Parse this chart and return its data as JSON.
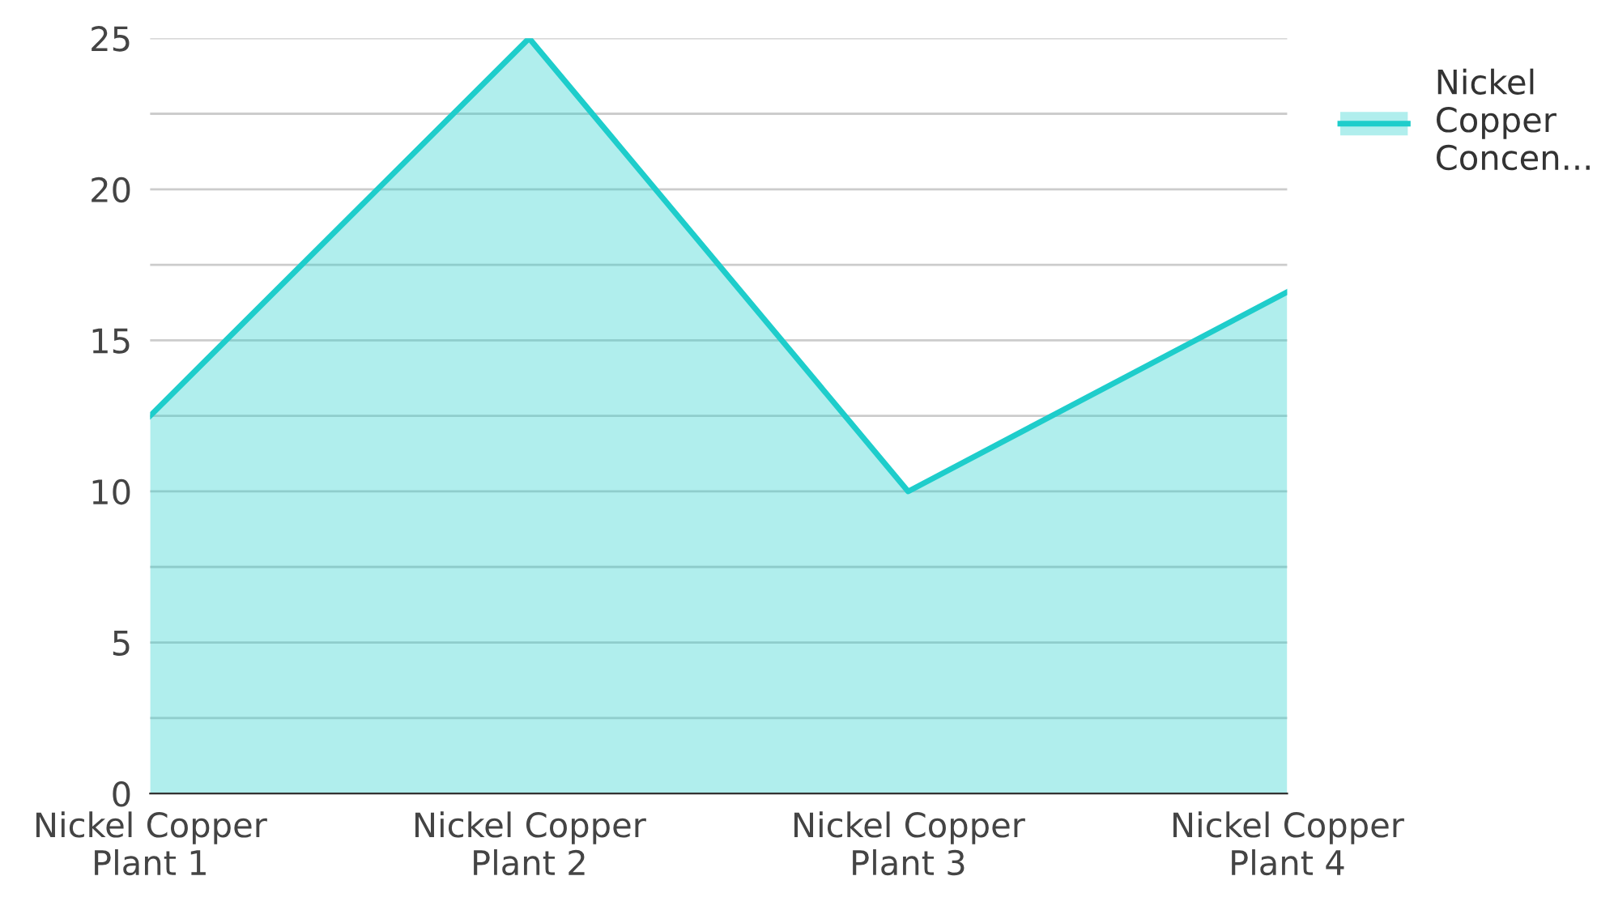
{
  "chart_data": {
    "type": "area",
    "categories": [
      "Nickel Copper\nPlant 1",
      "Nickel Copper\nPlant 2",
      "Nickel Copper\nPlant 3",
      "Nickel Copper\nPlant 4"
    ],
    "series": [
      {
        "name": "Nickel\nCopper\nConcen...",
        "color": "#1ecdcb",
        "values": [
          12.5,
          25,
          10,
          16.6
        ]
      }
    ],
    "ylim": [
      0,
      25
    ],
    "yticks": [
      0,
      {
        "value": 2.5,
        "label": null
      },
      5,
      {
        "value": 7.5,
        "label": null
      },
      10,
      {
        "value": 12.5,
        "label": null
      },
      15,
      {
        "value": 17.5,
        "label": null
      },
      20,
      {
        "value": 22.5,
        "label": null
      },
      25
    ],
    "grid": "y",
    "legend": "top right"
  }
}
